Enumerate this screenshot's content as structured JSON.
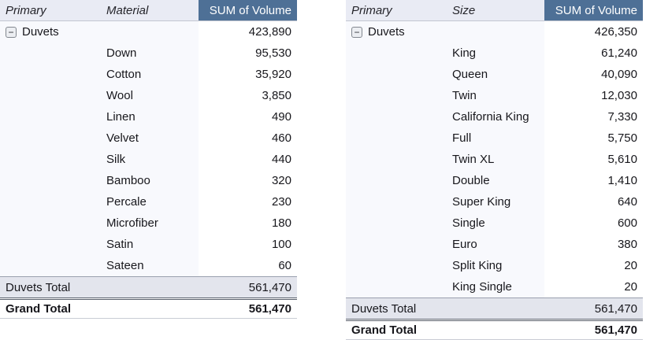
{
  "icons": {
    "collapse_glyph": "−"
  },
  "colors": {
    "accent_header": "#4e7096",
    "accent_header_text": "#ffffff",
    "header_bg": "#e9ebf4",
    "label_column_bg": "#f8f9fd",
    "total_row_bg": "#e3e5ed"
  },
  "tables": [
    {
      "name": "pivot-by-material",
      "columns": [
        "Primary",
        "Material",
        "SUM of Volume"
      ],
      "group": {
        "label": "Duvets",
        "value": "423,890"
      },
      "rows": [
        {
          "label": "Down",
          "value": "95,530"
        },
        {
          "label": "Cotton",
          "value": "35,920"
        },
        {
          "label": "Wool",
          "value": "3,850"
        },
        {
          "label": "Linen",
          "value": "490"
        },
        {
          "label": "Velvet",
          "value": "460"
        },
        {
          "label": "Silk",
          "value": "440"
        },
        {
          "label": "Bamboo",
          "value": "320"
        },
        {
          "label": "Percale",
          "value": "230"
        },
        {
          "label": "Microfiber",
          "value": "180"
        },
        {
          "label": "Satin",
          "value": "100"
        },
        {
          "label": "Sateen",
          "value": "60"
        }
      ],
      "total": {
        "label": "Duvets Total",
        "value": "561,470"
      },
      "grand_total": {
        "label": "Grand Total",
        "value": "561,470"
      }
    },
    {
      "name": "pivot-by-size",
      "columns": [
        "Primary",
        "Size",
        "SUM of Volume"
      ],
      "group": {
        "label": "Duvets",
        "value": "426,350"
      },
      "rows": [
        {
          "label": "King",
          "value": "61,240"
        },
        {
          "label": "Queen",
          "value": "40,090"
        },
        {
          "label": "Twin",
          "value": "12,030"
        },
        {
          "label": "California King",
          "value": "7,330"
        },
        {
          "label": "Full",
          "value": "5,750"
        },
        {
          "label": "Twin XL",
          "value": "5,610"
        },
        {
          "label": "Double",
          "value": "1,410"
        },
        {
          "label": "Super King",
          "value": "640"
        },
        {
          "label": "Single",
          "value": "600"
        },
        {
          "label": "Euro",
          "value": "380"
        },
        {
          "label": "Split King",
          "value": "20"
        },
        {
          "label": "King Single",
          "value": "20"
        }
      ],
      "total": {
        "label": "Duvets Total",
        "value": "561,470"
      },
      "grand_total": {
        "label": "Grand Total",
        "value": "561,470"
      }
    }
  ]
}
